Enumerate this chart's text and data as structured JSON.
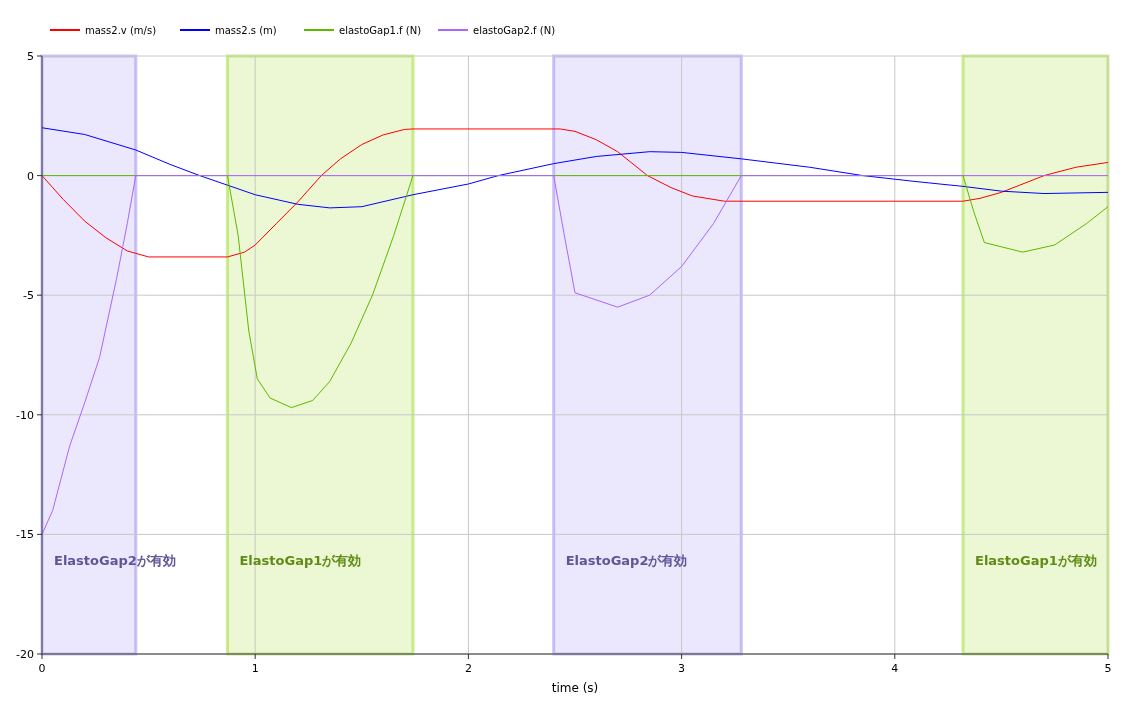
{
  "chart_data": {
    "type": "line",
    "xlabel": "time (s)",
    "xlim": [
      0,
      5
    ],
    "ylim": [
      -20,
      5
    ],
    "xticks": [
      0,
      1,
      2,
      3,
      4,
      5
    ],
    "yticks": [
      -20,
      -15,
      -10,
      -5,
      0,
      5
    ],
    "grid": true,
    "legend": "top",
    "line_style": "solid",
    "series": [
      {
        "name": "mass2.v (m/s)",
        "color": "#ff0000",
        "x": [
          0,
          0.05,
          0.1,
          0.2,
          0.3,
          0.4,
          0.5,
          0.87,
          0.95,
          1.0,
          1.1,
          1.2,
          1.31,
          1.4,
          1.5,
          1.6,
          1.7,
          1.74,
          2.43,
          2.5,
          2.6,
          2.7,
          2.84,
          2.95,
          3.05,
          3.2,
          4.32,
          4.4,
          4.5,
          4.7,
          4.85,
          5
        ],
        "values": [
          0,
          -0.5,
          -1.0,
          -1.9,
          -2.6,
          -3.15,
          -3.4,
          -3.4,
          -3.2,
          -2.9,
          -2.0,
          -1.1,
          0,
          0.7,
          1.3,
          1.7,
          1.93,
          1.95,
          1.95,
          1.85,
          1.5,
          1.0,
          0,
          -0.5,
          -0.85,
          -1.07,
          -1.07,
          -0.95,
          -0.7,
          0,
          0.35,
          0.55
        ]
      },
      {
        "name": "mass2.s (m)",
        "color": "#0000ff",
        "x": [
          0,
          0.2,
          0.44,
          0.6,
          0.74,
          0.87,
          1.0,
          1.2,
          1.35,
          1.5,
          1.74,
          2.0,
          2.14,
          2.4,
          2.6,
          2.85,
          3.0,
          3.28,
          3.6,
          3.85,
          4.1,
          4.32,
          4.5,
          4.7,
          5
        ],
        "values": [
          2.0,
          1.72,
          1.07,
          0.47,
          0,
          -0.4,
          -0.8,
          -1.2,
          -1.35,
          -1.3,
          -0.8,
          -0.35,
          0,
          0.5,
          0.8,
          1.0,
          0.97,
          0.7,
          0.35,
          0,
          -0.25,
          -0.45,
          -0.65,
          -0.75,
          -0.7
        ]
      },
      {
        "name": "elastoGap1.f (N)",
        "color": "#5fb800",
        "x": [
          0,
          0.87,
          0.92,
          0.97,
          1.01,
          1.07,
          1.17,
          1.27,
          1.35,
          1.45,
          1.55,
          1.65,
          1.74,
          4.32,
          4.37,
          4.42,
          4.6,
          4.75,
          4.9,
          5
        ],
        "values": [
          0,
          0,
          -2.5,
          -6.5,
          -8.5,
          -9.3,
          -9.7,
          -9.4,
          -8.6,
          -7.0,
          -5.0,
          -2.5,
          0,
          0,
          -1.5,
          -2.8,
          -3.2,
          -2.9,
          -2.0,
          -1.3
        ]
      },
      {
        "name": "elastoGap2.f (N)",
        "color": "#aa66ff",
        "x": [
          0,
          0.05,
          0.13,
          0.2,
          0.27,
          0.35,
          0.4,
          0.44,
          2.4,
          2.45,
          2.5,
          2.7,
          2.85,
          3.0,
          3.15,
          3.28,
          5
        ],
        "values": [
          -15.0,
          -14.0,
          -11.3,
          -9.5,
          -7.6,
          -4.3,
          -2.0,
          0,
          0,
          -2.5,
          -4.9,
          -5.5,
          -5.0,
          -3.8,
          -2.0,
          0,
          0
        ]
      }
    ],
    "bands": [
      {
        "axis": "x",
        "from": 0,
        "to": 0.44,
        "label": "ElastoGap2が有効",
        "color": "#9988ee"
      },
      {
        "axis": "x",
        "from": 0.87,
        "to": 1.74,
        "label": "ElastoGap1が有効",
        "color": "#99dd22"
      },
      {
        "axis": "x",
        "from": 2.4,
        "to": 3.28,
        "label": "ElastoGap2が有効",
        "color": "#9988ee"
      },
      {
        "axis": "x",
        "from": 4.32,
        "to": 5,
        "label": "ElastoGap1が有効",
        "color": "#99dd22"
      }
    ]
  }
}
